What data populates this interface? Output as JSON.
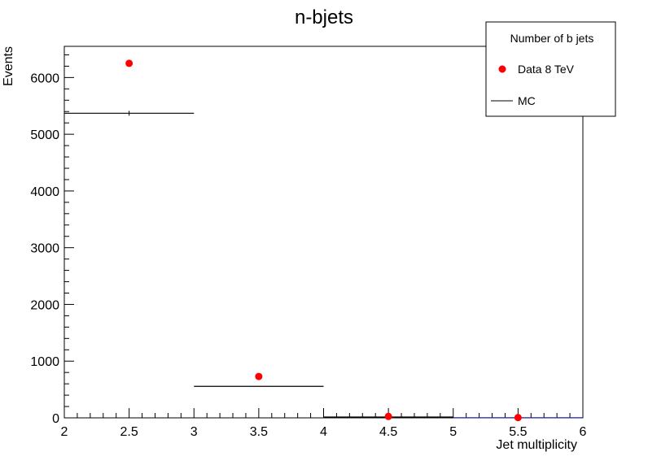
{
  "chart_data": {
    "type": "scatter",
    "title": "n-bjets",
    "xlabel": "Jet multiplicity",
    "ylabel": "Events",
    "xlim": [
      2,
      6
    ],
    "ylim": [
      0,
      6550
    ],
    "xticks": [
      "2",
      "2.5",
      "3",
      "3.5",
      "4",
      "4.5",
      "5",
      "5.5",
      "6"
    ],
    "yticks": [
      "0",
      "1000",
      "2000",
      "3000",
      "4000",
      "5000",
      "6000"
    ],
    "legend": {
      "position": "top-right",
      "title": "Number of b jets",
      "entries": [
        "Data 8 TeV",
        "MC"
      ]
    },
    "series": [
      {
        "name": "Data 8 TeV",
        "kind": "points",
        "color": "#ff0000",
        "x": [
          2.5,
          3.5,
          4.5,
          5.5
        ],
        "y": [
          6250,
          730,
          25,
          5
        ]
      },
      {
        "name": "MC",
        "kind": "histogram",
        "color": "#000000",
        "bins": [
          [
            2,
            3
          ],
          [
            3,
            4
          ],
          [
            4,
            5
          ],
          [
            5,
            6
          ]
        ],
        "values": [
          5370,
          555,
          15,
          3
        ]
      }
    ],
    "grid": false
  }
}
